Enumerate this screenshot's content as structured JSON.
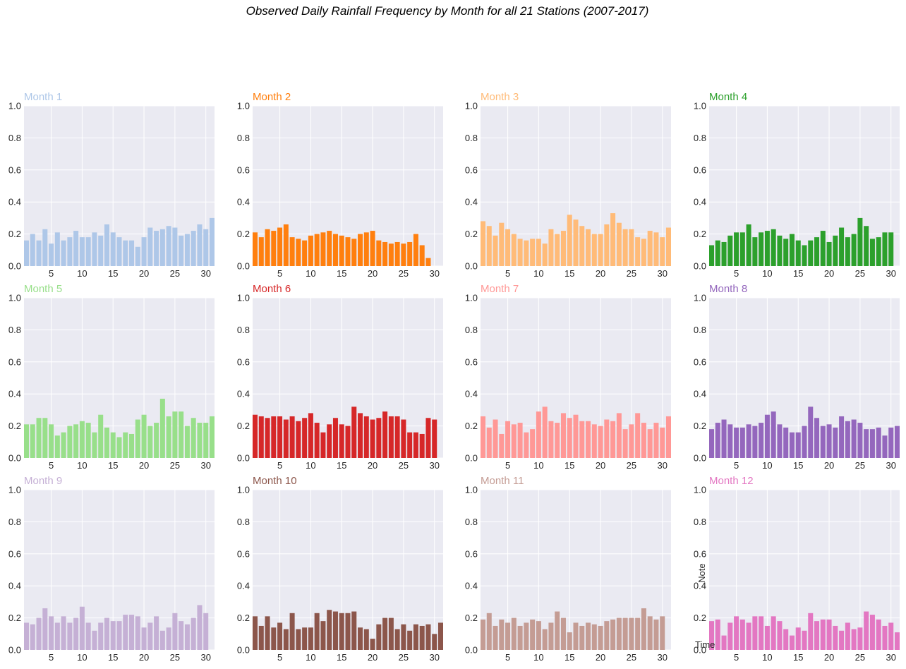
{
  "suptitle": "Observed Daily Rainfall Frequency by Month for all 21 Stations (2007-2017)",
  "style": {
    "plot_bg": "#eaeaf2",
    "grid": "#ffffff"
  },
  "chart_data": [
    {
      "type": "bar",
      "title": "Month 1",
      "color": "#aec7e8",
      "xticks": [
        5,
        10,
        15,
        20,
        25,
        30
      ],
      "yticks": [
        "0.0",
        "0.2",
        "0.4",
        "0.6",
        "0.8",
        "1.0"
      ],
      "ylim": [
        0,
        1
      ],
      "grid": true,
      "values": [
        0.16,
        0.2,
        0.16,
        0.23,
        0.14,
        0.21,
        0.16,
        0.18,
        0.22,
        0.18,
        0.18,
        0.21,
        0.19,
        0.26,
        0.21,
        0.18,
        0.16,
        0.16,
        0.12,
        0.18,
        0.24,
        0.22,
        0.23,
        0.25,
        0.24,
        0.19,
        0.2,
        0.22,
        0.26,
        0.23,
        0.3
      ]
    },
    {
      "type": "bar",
      "title": "Month 2",
      "color": "#ff7f0e",
      "xticks": [
        5,
        10,
        15,
        20,
        25,
        30
      ],
      "yticks": [
        "0.0",
        "0.2",
        "0.4",
        "0.6",
        "0.8",
        "1.0"
      ],
      "ylim": [
        0,
        1
      ],
      "grid": true,
      "values": [
        0.21,
        0.18,
        0.23,
        0.22,
        0.24,
        0.26,
        0.18,
        0.17,
        0.16,
        0.19,
        0.2,
        0.21,
        0.22,
        0.2,
        0.19,
        0.18,
        0.17,
        0.2,
        0.21,
        0.22,
        0.16,
        0.15,
        0.14,
        0.15,
        0.14,
        0.15,
        0.2,
        0.13,
        0.05
      ]
    },
    {
      "type": "bar",
      "title": "Month 3",
      "color": "#ffbb78",
      "xticks": [
        5,
        10,
        15,
        20,
        25,
        30
      ],
      "yticks": [
        "0.0",
        "0.2",
        "0.4",
        "0.6",
        "0.8",
        "1.0"
      ],
      "ylim": [
        0,
        1
      ],
      "grid": true,
      "values": [
        0.28,
        0.25,
        0.19,
        0.27,
        0.23,
        0.2,
        0.17,
        0.16,
        0.17,
        0.17,
        0.14,
        0.23,
        0.2,
        0.22,
        0.32,
        0.29,
        0.25,
        0.23,
        0.2,
        0.2,
        0.26,
        0.33,
        0.27,
        0.23,
        0.23,
        0.18,
        0.17,
        0.22,
        0.21,
        0.18,
        0.24
      ]
    },
    {
      "type": "bar",
      "title": "Month 4",
      "color": "#2ca02c",
      "xticks": [
        5,
        10,
        15,
        20,
        25,
        30
      ],
      "yticks": [
        "0.0",
        "0.2",
        "0.4",
        "0.6",
        "0.8",
        "1.0"
      ],
      "ylim": [
        0,
        1
      ],
      "grid": true,
      "values": [
        0.13,
        0.16,
        0.15,
        0.19,
        0.21,
        0.21,
        0.26,
        0.18,
        0.21,
        0.22,
        0.23,
        0.19,
        0.17,
        0.2,
        0.16,
        0.13,
        0.16,
        0.18,
        0.22,
        0.15,
        0.19,
        0.24,
        0.18,
        0.2,
        0.3,
        0.25,
        0.17,
        0.18,
        0.21,
        0.21
      ]
    },
    {
      "type": "bar",
      "title": "Month 5",
      "color": "#98df8a",
      "xticks": [
        5,
        10,
        15,
        20,
        25,
        30
      ],
      "yticks": [
        "0.0",
        "0.2",
        "0.4",
        "0.6",
        "0.8",
        "1.0"
      ],
      "ylim": [
        0,
        1
      ],
      "grid": true,
      "values": [
        0.21,
        0.21,
        0.25,
        0.25,
        0.21,
        0.14,
        0.16,
        0.2,
        0.21,
        0.23,
        0.22,
        0.16,
        0.27,
        0.19,
        0.16,
        0.13,
        0.16,
        0.15,
        0.24,
        0.27,
        0.2,
        0.22,
        0.37,
        0.26,
        0.29,
        0.29,
        0.2,
        0.25,
        0.22,
        0.22,
        0.26
      ]
    },
    {
      "type": "bar",
      "title": "Month 6",
      "color": "#d62728",
      "xticks": [
        5,
        10,
        15,
        20,
        25,
        30
      ],
      "yticks": [
        "0.0",
        "0.2",
        "0.4",
        "0.6",
        "0.8",
        "1.0"
      ],
      "ylim": [
        0,
        1
      ],
      "grid": true,
      "values": [
        0.27,
        0.26,
        0.25,
        0.26,
        0.26,
        0.24,
        0.26,
        0.23,
        0.25,
        0.28,
        0.22,
        0.16,
        0.21,
        0.25,
        0.21,
        0.2,
        0.32,
        0.28,
        0.26,
        0.24,
        0.25,
        0.29,
        0.26,
        0.26,
        0.24,
        0.16,
        0.16,
        0.15,
        0.25,
        0.24
      ]
    },
    {
      "type": "bar",
      "title": "Month 7",
      "color": "#ff9896",
      "xticks": [
        5,
        10,
        15,
        20,
        25,
        30
      ],
      "yticks": [
        "0.0",
        "0.2",
        "0.4",
        "0.6",
        "0.8",
        "1.0"
      ],
      "ylim": [
        0,
        1
      ],
      "grid": true,
      "values": [
        0.26,
        0.19,
        0.24,
        0.15,
        0.23,
        0.21,
        0.22,
        0.16,
        0.18,
        0.29,
        0.32,
        0.23,
        0.22,
        0.28,
        0.25,
        0.27,
        0.23,
        0.23,
        0.21,
        0.2,
        0.24,
        0.23,
        0.28,
        0.18,
        0.21,
        0.28,
        0.22,
        0.18,
        0.22,
        0.19,
        0.26
      ]
    },
    {
      "type": "bar",
      "title": "Month 8",
      "color": "#9467bd",
      "xticks": [
        5,
        10,
        15,
        20,
        25,
        30
      ],
      "yticks": [
        "0.0",
        "0.2",
        "0.4",
        "0.6",
        "0.8",
        "1.0"
      ],
      "ylim": [
        0,
        1
      ],
      "grid": true,
      "values": [
        0.18,
        0.22,
        0.24,
        0.21,
        0.19,
        0.19,
        0.21,
        0.2,
        0.22,
        0.27,
        0.29,
        0.21,
        0.19,
        0.16,
        0.16,
        0.2,
        0.32,
        0.25,
        0.2,
        0.21,
        0.19,
        0.26,
        0.23,
        0.24,
        0.22,
        0.18,
        0.18,
        0.19,
        0.14,
        0.19,
        0.2
      ]
    },
    {
      "type": "bar",
      "title": "Month 9",
      "color": "#c5b0d5",
      "xticks": [
        5,
        10,
        15,
        20,
        25,
        30
      ],
      "yticks": [
        "0.0",
        "0.2",
        "0.4",
        "0.6",
        "0.8",
        "1.0"
      ],
      "ylim": [
        0,
        1
      ],
      "grid": true,
      "values": [
        0.17,
        0.16,
        0.2,
        0.26,
        0.21,
        0.17,
        0.21,
        0.17,
        0.2,
        0.27,
        0.17,
        0.12,
        0.17,
        0.2,
        0.18,
        0.18,
        0.22,
        0.22,
        0.21,
        0.14,
        0.17,
        0.21,
        0.12,
        0.14,
        0.23,
        0.18,
        0.16,
        0.2,
        0.28,
        0.23
      ]
    },
    {
      "type": "bar",
      "title": "Month 10",
      "color": "#8c564b",
      "xticks": [
        5,
        10,
        15,
        20,
        25,
        30
      ],
      "yticks": [
        "0.0",
        "0.2",
        "0.4",
        "0.6",
        "0.8",
        "1.0"
      ],
      "ylim": [
        0,
        1
      ],
      "grid": true,
      "values": [
        0.21,
        0.15,
        0.21,
        0.14,
        0.17,
        0.13,
        0.23,
        0.13,
        0.14,
        0.14,
        0.23,
        0.18,
        0.25,
        0.24,
        0.23,
        0.23,
        0.24,
        0.14,
        0.13,
        0.07,
        0.16,
        0.2,
        0.2,
        0.13,
        0.16,
        0.12,
        0.16,
        0.15,
        0.16,
        0.1,
        0.17
      ]
    },
    {
      "type": "bar",
      "title": "Month 11",
      "color": "#c49c94",
      "xticks": [
        5,
        10,
        15,
        20,
        25,
        30
      ],
      "yticks": [
        "0.0",
        "0.2",
        "0.4",
        "0.6",
        "0.8",
        "1.0"
      ],
      "ylim": [
        0,
        1
      ],
      "grid": true,
      "values": [
        0.19,
        0.23,
        0.15,
        0.19,
        0.17,
        0.2,
        0.15,
        0.17,
        0.19,
        0.18,
        0.13,
        0.17,
        0.24,
        0.2,
        0.11,
        0.17,
        0.15,
        0.17,
        0.16,
        0.15,
        0.18,
        0.19,
        0.2,
        0.2,
        0.2,
        0.2,
        0.26,
        0.21,
        0.19,
        0.21
      ]
    },
    {
      "type": "bar",
      "title": "Month 12",
      "color": "#e377c2",
      "xticks": [
        5,
        10,
        15,
        20,
        25,
        30
      ],
      "yticks": [
        "0.0",
        "0.2",
        "0.4",
        "0.6",
        "0.8",
        "1.0"
      ],
      "ylim": [
        0,
        1
      ],
      "grid": true,
      "values": [
        0.18,
        0.19,
        0.09,
        0.17,
        0.21,
        0.19,
        0.17,
        0.21,
        0.21,
        0.15,
        0.21,
        0.18,
        0.13,
        0.09,
        0.14,
        0.12,
        0.23,
        0.18,
        0.19,
        0.19,
        0.15,
        0.12,
        0.17,
        0.13,
        0.14,
        0.24,
        0.22,
        0.19,
        0.15,
        0.17,
        0.11
      ],
      "ylabel": "Note",
      "xlabel": "Time"
    }
  ]
}
